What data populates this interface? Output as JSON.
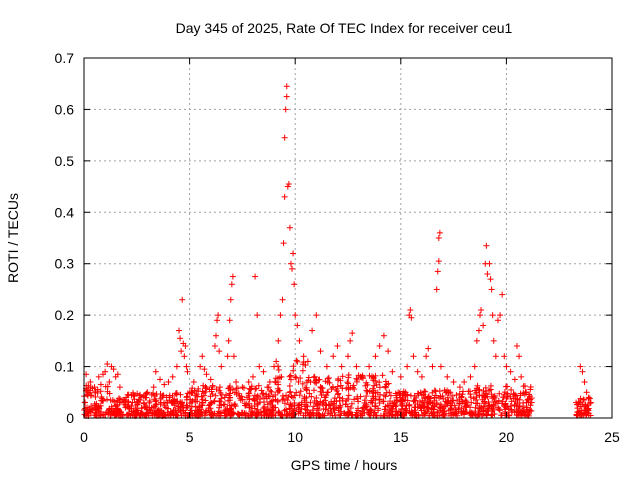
{
  "chart_data": {
    "type": "scatter",
    "title": "Day 345 of 2025, Rate Of TEC Index for receiver ceu1",
    "xlabel": "GPS time / hours",
    "ylabel": "ROTI / TECUs",
    "xlim": [
      0,
      25
    ],
    "ylim": [
      0,
      0.7
    ],
    "xticks": [
      "0",
      "5",
      "10",
      "15",
      "20",
      "25"
    ],
    "yticks": [
      "0",
      "0.1",
      "0.2",
      "0.3",
      "0.4",
      "0.5",
      "0.6",
      "0.7"
    ],
    "grid": true,
    "marker": "plus",
    "color": "#ff0000",
    "series": [
      {
        "points": [
          [
            0.05,
            0.03
          ],
          [
            0.1,
            0.085
          ],
          [
            0.2,
            0.05
          ],
          [
            0.3,
            0.07
          ],
          [
            0.5,
            0.06
          ],
          [
            0.7,
            0.08
          ],
          [
            0.8,
            0.065
          ],
          [
            0.9,
            0.085
          ],
          [
            1.0,
            0.09
          ],
          [
            1.1,
            0.105
          ],
          [
            1.2,
            0.07
          ],
          [
            1.3,
            0.1
          ],
          [
            1.4,
            0.095
          ],
          [
            1.5,
            0.08
          ],
          [
            1.6,
            0.085
          ],
          [
            1.7,
            0.06
          ],
          [
            2.0,
            0.04
          ],
          [
            2.3,
            0.03
          ],
          [
            2.6,
            0.035
          ],
          [
            3.0,
            0.05
          ],
          [
            3.3,
            0.06
          ],
          [
            3.4,
            0.09
          ],
          [
            3.6,
            0.075
          ],
          [
            3.8,
            0.065
          ],
          [
            4.0,
            0.07
          ],
          [
            4.2,
            0.08
          ],
          [
            4.4,
            0.1
          ],
          [
            4.5,
            0.17
          ],
          [
            4.55,
            0.155
          ],
          [
            4.6,
            0.13
          ],
          [
            4.65,
            0.23
          ],
          [
            4.7,
            0.145
          ],
          [
            4.75,
            0.12
          ],
          [
            4.8,
            0.14
          ],
          [
            4.85,
            0.1
          ],
          [
            4.9,
            0.09
          ],
          [
            5.2,
            0.07
          ],
          [
            5.5,
            0.1
          ],
          [
            5.6,
            0.12
          ],
          [
            5.7,
            0.095
          ],
          [
            5.8,
            0.085
          ],
          [
            6.0,
            0.075
          ],
          [
            6.2,
            0.14
          ],
          [
            6.25,
            0.16
          ],
          [
            6.3,
            0.19
          ],
          [
            6.35,
            0.2
          ],
          [
            6.4,
            0.13
          ],
          [
            6.5,
            0.1
          ],
          [
            6.8,
            0.12
          ],
          [
            6.85,
            0.15
          ],
          [
            6.9,
            0.19
          ],
          [
            6.95,
            0.23
          ],
          [
            7.0,
            0.26
          ],
          [
            7.05,
            0.275
          ],
          [
            7.1,
            0.12
          ],
          [
            7.2,
            0.07
          ],
          [
            7.5,
            0.06
          ],
          [
            7.8,
            0.07
          ],
          [
            8.0,
            0.08
          ],
          [
            8.1,
            0.275
          ],
          [
            8.2,
            0.2
          ],
          [
            8.3,
            0.1
          ],
          [
            8.5,
            0.09
          ],
          [
            8.8,
            0.07
          ],
          [
            9.0,
            0.1
          ],
          [
            9.1,
            0.11
          ],
          [
            9.2,
            0.15
          ],
          [
            9.3,
            0.2
          ],
          [
            9.4,
            0.23
          ],
          [
            9.45,
            0.34
          ],
          [
            9.5,
            0.43
          ],
          [
            9.5,
            0.545
          ],
          [
            9.55,
            0.6
          ],
          [
            9.6,
            0.625
          ],
          [
            9.6,
            0.645
          ],
          [
            9.65,
            0.45
          ],
          [
            9.7,
            0.455
          ],
          [
            9.75,
            0.37
          ],
          [
            9.8,
            0.3
          ],
          [
            9.85,
            0.29
          ],
          [
            9.9,
            0.32
          ],
          [
            9.95,
            0.26
          ],
          [
            10.0,
            0.2
          ],
          [
            10.1,
            0.18
          ],
          [
            10.2,
            0.15
          ],
          [
            10.4,
            0.12
          ],
          [
            10.6,
            0.11
          ],
          [
            10.8,
            0.17
          ],
          [
            11.0,
            0.2
          ],
          [
            11.2,
            0.13
          ],
          [
            11.5,
            0.1
          ],
          [
            11.8,
            0.12
          ],
          [
            12.0,
            0.14
          ],
          [
            12.2,
            0.1
          ],
          [
            12.5,
            0.12
          ],
          [
            12.6,
            0.15
          ],
          [
            12.7,
            0.165
          ],
          [
            12.9,
            0.1
          ],
          [
            13.2,
            0.08
          ],
          [
            13.5,
            0.1
          ],
          [
            13.8,
            0.12
          ],
          [
            14.0,
            0.14
          ],
          [
            14.2,
            0.16
          ],
          [
            14.4,
            0.13
          ],
          [
            14.6,
            0.09
          ],
          [
            15.0,
            0.08
          ],
          [
            15.3,
            0.1
          ],
          [
            15.4,
            0.2
          ],
          [
            15.45,
            0.21
          ],
          [
            15.5,
            0.195
          ],
          [
            15.6,
            0.12
          ],
          [
            15.8,
            0.09
          ],
          [
            16.0,
            0.08
          ],
          [
            16.2,
            0.12
          ],
          [
            16.3,
            0.135
          ],
          [
            16.5,
            0.1
          ],
          [
            16.7,
            0.25
          ],
          [
            16.75,
            0.285
          ],
          [
            16.8,
            0.305
          ],
          [
            16.8,
            0.35
          ],
          [
            16.85,
            0.36
          ],
          [
            16.9,
            0.1
          ],
          [
            17.2,
            0.08
          ],
          [
            17.5,
            0.07
          ],
          [
            17.8,
            0.06
          ],
          [
            18.0,
            0.07
          ],
          [
            18.3,
            0.08
          ],
          [
            18.5,
            0.1
          ],
          [
            18.6,
            0.15
          ],
          [
            18.7,
            0.17
          ],
          [
            18.75,
            0.2
          ],
          [
            18.8,
            0.21
          ],
          [
            18.9,
            0.18
          ],
          [
            19.0,
            0.3
          ],
          [
            19.05,
            0.335
          ],
          [
            19.1,
            0.28
          ],
          [
            19.2,
            0.3
          ],
          [
            19.25,
            0.27
          ],
          [
            19.3,
            0.25
          ],
          [
            19.35,
            0.2
          ],
          [
            19.4,
            0.15
          ],
          [
            19.5,
            0.12
          ],
          [
            19.6,
            0.19
          ],
          [
            19.7,
            0.2
          ],
          [
            19.8,
            0.24
          ],
          [
            19.9,
            0.12
          ],
          [
            20.0,
            0.1
          ],
          [
            20.2,
            0.09
          ],
          [
            20.4,
            0.075
          ],
          [
            20.5,
            0.14
          ],
          [
            20.6,
            0.12
          ],
          [
            20.7,
            0.08
          ],
          [
            20.9,
            0.05
          ],
          [
            21.0,
            0.035
          ],
          [
            21.2,
            0.03
          ],
          [
            23.3,
            0.03
          ],
          [
            23.5,
            0.1
          ],
          [
            23.6,
            0.09
          ],
          [
            23.7,
            0.07
          ],
          [
            23.8,
            0.05
          ],
          [
            23.9,
            0.04
          ],
          [
            24.0,
            0.03
          ]
        ]
      }
    ],
    "background_density": [
      {
        "x0": 0.0,
        "x1": 1.2,
        "ymax": 0.06
      },
      {
        "x0": 1.2,
        "x1": 5.0,
        "ymax": 0.045
      },
      {
        "x0": 5.0,
        "x1": 9.0,
        "ymax": 0.06
      },
      {
        "x0": 9.0,
        "x1": 10.5,
        "ymax": 0.11
      },
      {
        "x0": 10.5,
        "x1": 14.5,
        "ymax": 0.08
      },
      {
        "x0": 14.5,
        "x1": 18.5,
        "ymax": 0.05
      },
      {
        "x0": 18.5,
        "x1": 21.2,
        "ymax": 0.06
      },
      {
        "x0": 23.3,
        "x1": 24.0,
        "ymax": 0.035
      }
    ]
  }
}
